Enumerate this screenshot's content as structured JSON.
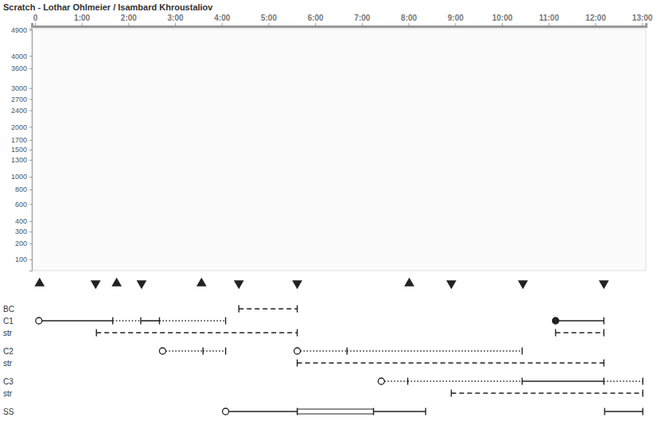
{
  "chart_data": {
    "type": "timeline",
    "title": "Scratch - Lothar Ohlmeier / Isambard Khroustaliov",
    "xlim": [
      -4,
      785
    ],
    "xticks": [
      0,
      {
        "value": 60,
        "label": "1:00"
      },
      {
        "value": 120,
        "label": "2:00"
      },
      {
        "value": 180,
        "label": "3:00"
      },
      {
        "value": 240,
        "label": "4:00"
      },
      {
        "value": 300,
        "label": "5:00"
      },
      {
        "value": 360,
        "label": "6:00"
      },
      {
        "value": 420,
        "label": "7:00"
      },
      {
        "value": 480,
        "label": "8:00"
      },
      {
        "value": 540,
        "label": "9:00"
      },
      {
        "value": 600,
        "label": "10:00"
      },
      {
        "value": 660,
        "label": "11:00"
      },
      {
        "value": 720,
        "label": "12:00"
      },
      {
        "value": 780,
        "label": "13:00"
      }
    ],
    "ylim": [
      50,
      4950
    ],
    "yticks": [
      4900,
      4000,
      3600,
      3000,
      2700,
      2400,
      2000,
      1700,
      1500,
      1300,
      1000,
      800,
      600,
      400,
      300,
      200,
      100
    ],
    "up_markers": [
      6,
      105,
      214,
      481
    ],
    "down_markers": [
      78,
      137,
      262,
      337,
      535,
      627,
      731
    ],
    "rows": [
      {
        "label": "BC",
        "segments": [
          {
            "start": 262,
            "end": 337,
            "line_style": "dashed",
            "marker": "tick"
          }
        ]
      },
      {
        "label": "C1",
        "segments": [
          {
            "start": 5,
            "end": 100,
            "line_style": "solid",
            "marker": "open_circle"
          },
          {
            "start": 100,
            "end": 136,
            "line_style": "dotted",
            "marker": "none"
          },
          {
            "start": 136,
            "end": 160,
            "line_style": "solid",
            "marker": "none"
          },
          {
            "start": 160,
            "end": 245,
            "line_style": "dotted",
            "marker": "none"
          },
          {
            "start": 669,
            "end": 731,
            "line_style": "solid",
            "marker": "filled_circle"
          }
        ]
      },
      {
        "label": "str",
        "segments": [
          {
            "start": 79,
            "end": 337,
            "line_style": "dashed",
            "marker": "tick"
          },
          {
            "start": 669,
            "end": 731,
            "line_style": "dashed",
            "marker": "tick"
          }
        ]
      },
      {
        "label": "C2",
        "segments": [
          {
            "start": 164,
            "end": 216,
            "line_style": "dotted",
            "marker": "open_circle"
          },
          {
            "start": 216,
            "end": 245,
            "line_style": "dotted",
            "marker": "none"
          },
          {
            "start": 337,
            "end": 401,
            "line_style": "dotted",
            "marker": "open_circle"
          },
          {
            "start": 401,
            "end": 626,
            "line_style": "dotted",
            "marker": "none"
          }
        ]
      },
      {
        "label": "str",
        "segments": [
          {
            "start": 337,
            "end": 731,
            "line_style": "dashed",
            "marker": "tick"
          }
        ]
      },
      {
        "label": "C3",
        "segments": [
          {
            "start": 445,
            "end": 479,
            "line_style": "dotted",
            "marker": "open_circle"
          },
          {
            "start": 479,
            "end": 626,
            "line_style": "dotted",
            "marker": "none"
          },
          {
            "start": 626,
            "end": 731,
            "line_style": "solid",
            "marker": "none"
          },
          {
            "start": 731,
            "end": 781,
            "line_style": "dotted",
            "marker": "none"
          }
        ]
      },
      {
        "label": "str",
        "segments": [
          {
            "start": 535,
            "end": 781,
            "line_style": "dashed",
            "marker": "tick"
          }
        ]
      },
      {
        "label": "SS",
        "segments": [
          {
            "start": 245,
            "end": 337,
            "line_style": "solid",
            "marker": "open_circle"
          },
          {
            "start": 337,
            "end": 435,
            "line_style": "box",
            "marker": "none"
          },
          {
            "start": 435,
            "end": 502,
            "line_style": "solid",
            "marker": "none"
          },
          {
            "start": 732,
            "end": 781,
            "line_style": "solid",
            "marker": "tick"
          }
        ]
      }
    ]
  }
}
